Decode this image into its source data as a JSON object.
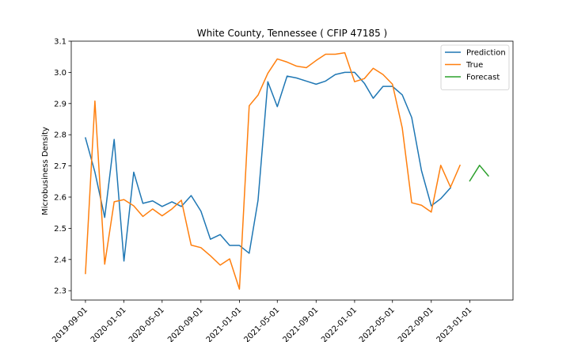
{
  "chart_data": {
    "type": "line",
    "title": "White County, Tennessee ( CFIP 47185 )",
    "xlabel": "",
    "ylabel": "Microbusiness Density",
    "ylim": [
      2.27,
      3.1
    ],
    "yticks": [
      2.3,
      2.4,
      2.5,
      2.6,
      2.7,
      2.8,
      2.9,
      3.0,
      3.1
    ],
    "yticklabels": [
      "2.3",
      "2.4",
      "2.5",
      "2.6",
      "2.7",
      "2.8",
      "2.9",
      "3.0",
      "3.1"
    ],
    "xlim": [
      "2019-07-18",
      "2023-05-18"
    ],
    "xticks": [
      "2019-09-01",
      "2020-01-01",
      "2020-05-01",
      "2020-09-01",
      "2021-01-01",
      "2021-05-01",
      "2021-09-01",
      "2022-01-01",
      "2022-05-01",
      "2022-09-01",
      "2023-01-01"
    ],
    "legend": {
      "placement": "top-right"
    },
    "grid": false,
    "series": [
      {
        "name": "Prediction",
        "color": "#1f77b4",
        "x": [
          "2019-09-01",
          "2019-10-01",
          "2019-11-01",
          "2019-12-01",
          "2020-01-01",
          "2020-02-01",
          "2020-03-01",
          "2020-04-01",
          "2020-05-01",
          "2020-06-01",
          "2020-07-01",
          "2020-08-01",
          "2020-09-01",
          "2020-10-01",
          "2020-11-01",
          "2020-12-01",
          "2021-01-01",
          "2021-02-01",
          "2021-03-01",
          "2021-04-01",
          "2021-05-01",
          "2021-06-01",
          "2021-07-01",
          "2021-08-01",
          "2021-09-01",
          "2021-10-01",
          "2021-11-01",
          "2021-12-01",
          "2022-01-01",
          "2022-02-01",
          "2022-03-01",
          "2022-04-01",
          "2022-05-01",
          "2022-06-01",
          "2022-07-01",
          "2022-08-01",
          "2022-09-01",
          "2022-10-01",
          "2022-11-01"
        ],
        "y": [
          2.79,
          2.68,
          2.535,
          2.785,
          2.395,
          2.68,
          2.58,
          2.588,
          2.57,
          2.585,
          2.57,
          2.605,
          2.555,
          2.465,
          2.48,
          2.445,
          2.445,
          2.42,
          2.59,
          2.97,
          2.89,
          2.988,
          2.982,
          2.972,
          2.962,
          2.972,
          2.993,
          3.0,
          3.0,
          2.965,
          2.917,
          2.955,
          2.955,
          2.928,
          2.855,
          2.685,
          2.572,
          2.595,
          2.63
        ]
      },
      {
        "name": "True",
        "color": "#ff7f0e",
        "x": [
          "2019-09-01",
          "2019-10-01",
          "2019-11-01",
          "2019-12-01",
          "2020-01-01",
          "2020-02-01",
          "2020-03-01",
          "2020-04-01",
          "2020-05-01",
          "2020-06-01",
          "2020-07-01",
          "2020-08-01",
          "2020-09-01",
          "2020-10-01",
          "2020-11-01",
          "2020-12-01",
          "2021-01-01",
          "2021-02-01",
          "2021-03-01",
          "2021-04-01",
          "2021-05-01",
          "2021-06-01",
          "2021-07-01",
          "2021-08-01",
          "2021-09-01",
          "2021-10-01",
          "2021-11-01",
          "2021-12-01",
          "2022-01-01",
          "2022-02-01",
          "2022-03-01",
          "2022-04-01",
          "2022-05-01",
          "2022-06-01",
          "2022-07-01",
          "2022-08-01",
          "2022-09-01",
          "2022-10-01",
          "2022-11-01",
          "2022-12-01"
        ],
        "y": [
          2.355,
          2.908,
          2.385,
          2.585,
          2.592,
          2.572,
          2.538,
          2.562,
          2.54,
          2.562,
          2.59,
          2.446,
          2.438,
          2.412,
          2.382,
          2.402,
          2.305,
          2.893,
          2.927,
          2.997,
          3.043,
          3.033,
          3.02,
          3.015,
          3.038,
          3.058,
          3.058,
          3.063,
          2.97,
          2.98,
          3.013,
          2.993,
          2.962,
          2.822,
          2.582,
          2.574,
          2.552,
          2.702,
          2.632,
          2.702
        ]
      },
      {
        "name": "Forecast",
        "color": "#2ca02c",
        "x": [
          "2023-01-01",
          "2023-02-01",
          "2023-03-01"
        ],
        "y": [
          2.652,
          2.702,
          2.668
        ]
      }
    ]
  }
}
